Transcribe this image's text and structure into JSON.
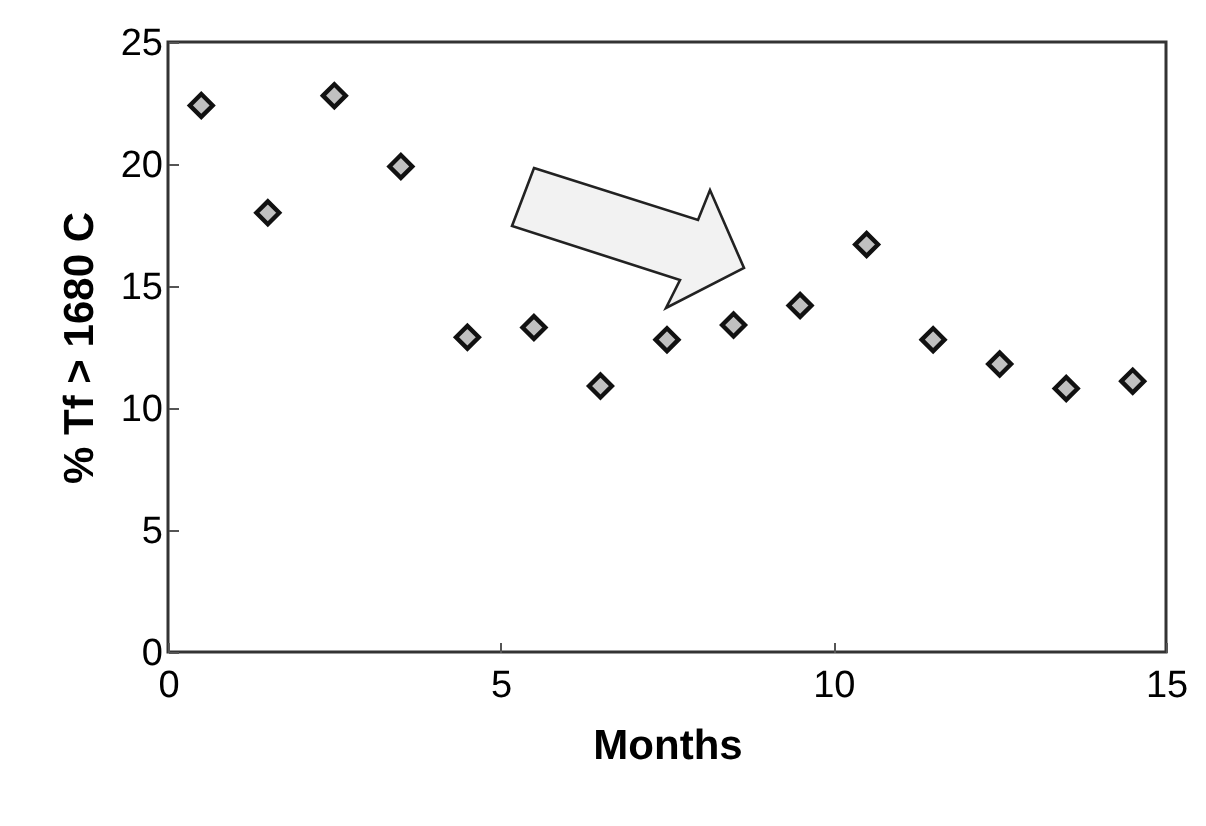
{
  "chart_data": {
    "type": "scatter",
    "xlabel": "Months",
    "ylabel": "% Tf > 1680 C",
    "x": [
      0.5,
      1.5,
      2.5,
      3.5,
      4.5,
      5.5,
      6.5,
      7.5,
      8.5,
      9.5,
      10.5,
      11.5,
      12.5,
      13.5,
      14.5
    ],
    "values": [
      22.4,
      18.0,
      22.8,
      19.9,
      12.9,
      13.3,
      10.9,
      12.8,
      13.4,
      14.2,
      16.7,
      12.8,
      11.8,
      10.8,
      11.1
    ],
    "color": "#c0c0c0",
    "marker": "diamond",
    "xlim": [
      0,
      15
    ],
    "xticks": [
      0,
      5,
      10,
      15
    ],
    "ylim": [
      0,
      25
    ],
    "yticks": [
      0,
      5,
      10,
      15,
      20,
      25
    ],
    "grid": false
  }
}
